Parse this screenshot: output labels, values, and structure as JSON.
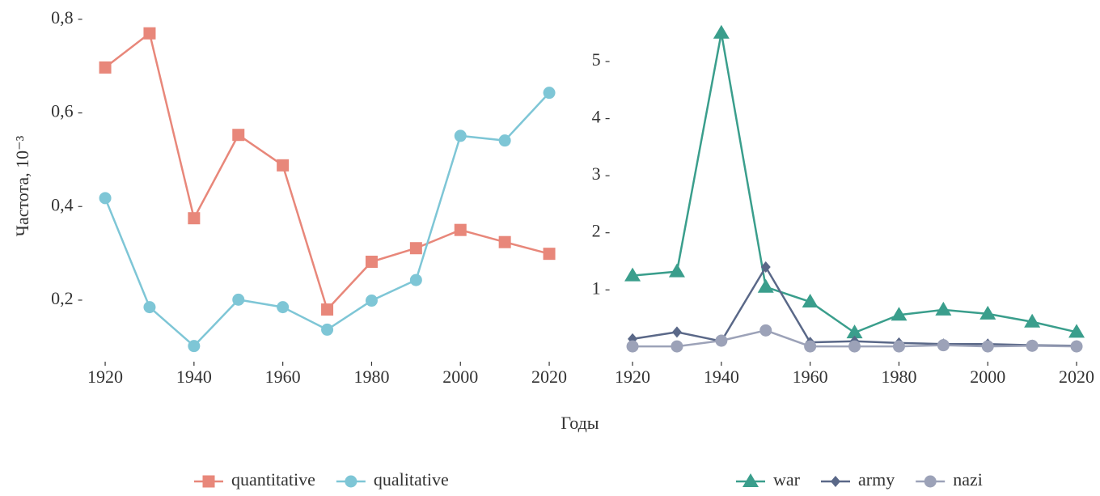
{
  "chart_data": [
    {
      "type": "line",
      "xlabel": "Годы",
      "ylabel": "Частота, 10⁻³",
      "x": [
        1920,
        1930,
        1940,
        1950,
        1960,
        1970,
        1980,
        1990,
        2000,
        2010,
        2020
      ],
      "xlim": [
        1915,
        2025
      ],
      "xticks": [
        1920,
        1940,
        1960,
        1980,
        2000,
        2020
      ],
      "ylim": [
        0.072,
        0.817
      ],
      "yticks": [
        {
          "value": 0.2,
          "label": "0,2"
        },
        {
          "value": 0.4,
          "label": "0,4"
        },
        {
          "value": 0.6,
          "label": "0,6"
        },
        {
          "value": 0.8,
          "label": "0,8"
        }
      ],
      "series": [
        {
          "name": "quantitative",
          "color": "#e8877a",
          "marker": "square",
          "values": [
            0.697,
            0.77,
            0.375,
            0.553,
            0.488,
            0.18,
            0.282,
            0.311,
            0.35,
            0.324,
            0.299
          ]
        },
        {
          "name": "qualitative",
          "color": "#7ec6d6",
          "marker": "circle",
          "values": [
            0.418,
            0.185,
            0.102,
            0.201,
            0.185,
            0.137,
            0.199,
            0.243,
            0.551,
            0.541,
            0.643
          ]
        }
      ]
    },
    {
      "type": "line",
      "x": [
        1920,
        1930,
        1940,
        1950,
        1960,
        1970,
        1980,
        1990,
        2000,
        2010,
        2020
      ],
      "xlim": [
        1915,
        2025
      ],
      "xticks": [
        1920,
        1940,
        1960,
        1980,
        2000,
        2020
      ],
      "ylim": [
        -0.23,
        5.88
      ],
      "yticks": [
        1,
        2,
        3,
        4,
        5
      ],
      "series": [
        {
          "name": "war",
          "color": "#3a9e8c",
          "marker": "triangle",
          "values": [
            1.25,
            1.32,
            5.5,
            1.05,
            0.79,
            0.25,
            0.56,
            0.65,
            0.58,
            0.44,
            0.26
          ]
        },
        {
          "name": "army",
          "color": "#5a6888",
          "marker": "diamond",
          "values": [
            0.14,
            0.26,
            0.1,
            1.4,
            0.08,
            0.1,
            0.07,
            0.05,
            0.05,
            0.03,
            0.02
          ]
        },
        {
          "name": "nazi",
          "color": "#9ca2b8",
          "marker": "circle",
          "values": [
            0.01,
            0.01,
            0.11,
            0.29,
            0.01,
            0.01,
            0.01,
            0.03,
            0.01,
            0.02,
            0.01
          ]
        }
      ]
    }
  ]
}
